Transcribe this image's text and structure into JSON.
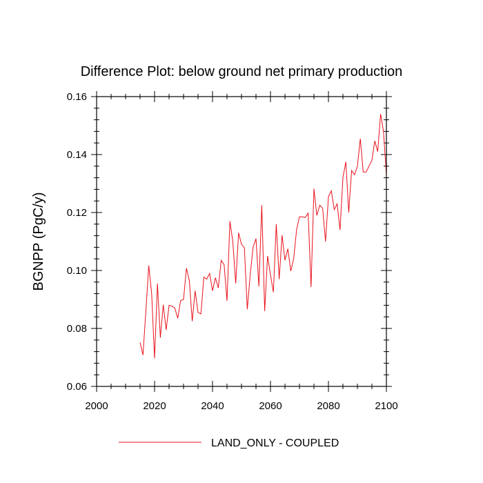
{
  "chart_data": {
    "type": "line",
    "title": "Difference Plot: below ground net primary production",
    "xlabel": "",
    "ylabel": "BGNPP  (PgC/y)",
    "xlim": [
      2000,
      2100
    ],
    "ylim": [
      0.06,
      0.16
    ],
    "xticks": [
      2000,
      2020,
      2040,
      2060,
      2080,
      2100
    ],
    "yticks": [
      0.06,
      0.08,
      0.1,
      0.12,
      0.14,
      0.16
    ],
    "xtick_labels": [
      "2000",
      "2020",
      "2040",
      "2060",
      "2080",
      "2100"
    ],
    "ytick_labels": [
      "0.06",
      "0.08",
      "0.10",
      "0.12",
      "0.14",
      "0.16"
    ],
    "grid": false,
    "legend_position": "bottom-center",
    "series": [
      {
        "name": "LAND_ONLY - COUPLED",
        "color": "#e8101a",
        "x": [
          2015,
          2016,
          2017,
          2018,
          2019,
          2020,
          2021,
          2022,
          2023,
          2024,
          2025,
          2026,
          2027,
          2028,
          2029,
          2030,
          2031,
          2032,
          2033,
          2034,
          2035,
          2036,
          2037,
          2038,
          2039,
          2040,
          2041,
          2042,
          2043,
          2044,
          2045,
          2046,
          2047,
          2048,
          2049,
          2050,
          2051,
          2052,
          2053,
          2054,
          2055,
          2056,
          2057,
          2058,
          2059,
          2060,
          2061,
          2062,
          2063,
          2064,
          2065,
          2066,
          2067,
          2068,
          2069,
          2070,
          2071,
          2072,
          2073,
          2074,
          2075,
          2076,
          2077,
          2078,
          2079,
          2080,
          2081,
          2082,
          2083,
          2084,
          2085,
          2086,
          2087,
          2088,
          2089,
          2090,
          2091,
          2092,
          2093,
          2094,
          2095,
          2096,
          2097,
          2098,
          2099,
          2100
        ],
        "values": [
          0.0752,
          0.0708,
          0.086,
          0.1017,
          0.092,
          0.0697,
          0.0955,
          0.0768,
          0.0882,
          0.0795,
          0.088,
          0.0877,
          0.087,
          0.0835,
          0.0896,
          0.09,
          0.1008,
          0.0965,
          0.0825,
          0.093,
          0.0855,
          0.085,
          0.0977,
          0.097,
          0.099,
          0.093,
          0.0975,
          0.094,
          0.1035,
          0.102,
          0.0895,
          0.117,
          0.11,
          0.0955,
          0.113,
          0.109,
          0.1078,
          0.0866,
          0.0985,
          0.108,
          0.111,
          0.0945,
          0.1225,
          0.086,
          0.105,
          0.0985,
          0.0925,
          0.116,
          0.097,
          0.1122,
          0.1035,
          0.1075,
          0.0998,
          0.104,
          0.114,
          0.1185,
          0.1185,
          0.1183,
          0.1198,
          0.0943,
          0.1282,
          0.119,
          0.1225,
          0.1215,
          0.11,
          0.1255,
          0.1275,
          0.121,
          0.123,
          0.114,
          0.132,
          0.1375,
          0.12,
          0.1345,
          0.133,
          0.136,
          0.1455,
          0.134,
          0.134,
          0.136,
          0.138,
          0.1447,
          0.141,
          0.154,
          0.148,
          0.133
        ]
      }
    ]
  }
}
